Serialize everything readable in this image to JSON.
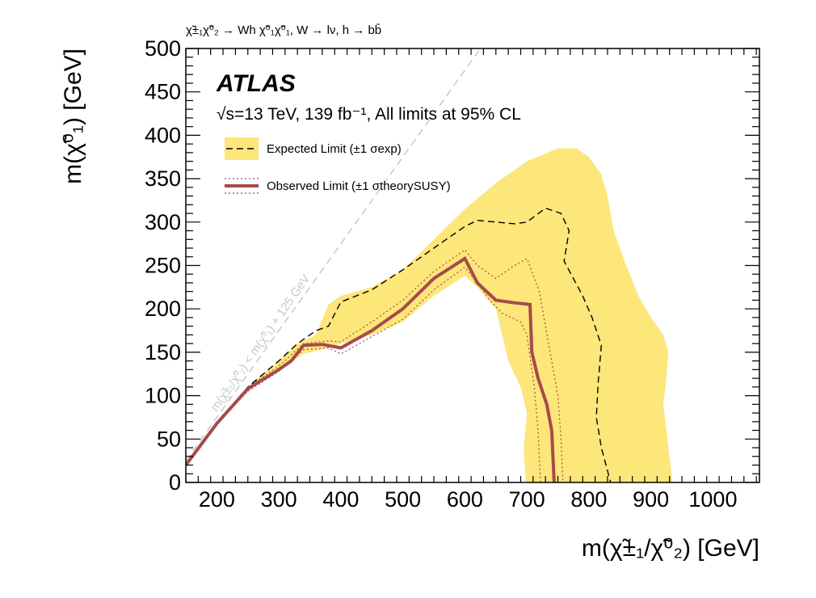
{
  "chart_data": {
    "type": "line",
    "process_label": "χ̃±₁χ̃⁰₂ → Wh χ̃⁰₁χ̃⁰₁, W → lν, h → bb̄",
    "experiment": "ATLAS",
    "energy_label": "√s=13 TeV, 139 fb⁻¹, All limits at 95% CL",
    "xlabel": "m(χ̃±₁/χ̃⁰₂) [GeV]",
    "ylabel": "m(χ̃⁰₁) [GeV]",
    "xlim": [
      150,
      1075
    ],
    "ylim": [
      0,
      500
    ],
    "x_ticks": [
      200,
      300,
      400,
      500,
      600,
      700,
      800,
      900,
      1000
    ],
    "y_ticks": [
      0,
      50,
      100,
      150,
      200,
      250,
      300,
      350,
      400,
      450,
      500
    ],
    "grid": false,
    "legend_position": "top-left",
    "legend": [
      {
        "label": "Expected Limit (±1 σexp)"
      },
      {
        "label": "Observed Limit (±1 σtheorySUSY)"
      }
    ],
    "diagonal_label": "m(χ̃±₁/χ̃⁰₂) < m(χ̃⁰₁) + 125 GeV",
    "diagonal_offset": 125,
    "colors": {
      "band": "#fde67a",
      "observed": "#a54b4b",
      "diagonal": "#c8c8c8"
    },
    "band_upper": [
      [
        150,
        20
      ],
      [
        200,
        68
      ],
      [
        250,
        110
      ],
      [
        300,
        140
      ],
      [
        330,
        160
      ],
      [
        360,
        170
      ],
      [
        380,
        205
      ],
      [
        400,
        215
      ],
      [
        450,
        225
      ],
      [
        500,
        245
      ],
      [
        550,
        280
      ],
      [
        600,
        315
      ],
      [
        650,
        345
      ],
      [
        700,
        370
      ],
      [
        750,
        385
      ],
      [
        780,
        385
      ],
      [
        800,
        375
      ],
      [
        820,
        355
      ],
      [
        830,
        330
      ],
      [
        840,
        290
      ],
      [
        860,
        250
      ],
      [
        880,
        215
      ],
      [
        900,
        190
      ],
      [
        920,
        170
      ],
      [
        928,
        150
      ],
      [
        925,
        120
      ],
      [
        920,
        90
      ],
      [
        925,
        60
      ],
      [
        930,
        30
      ],
      [
        935,
        0
      ]
    ],
    "band_lower": [
      [
        150,
        20
      ],
      [
        200,
        68
      ],
      [
        250,
        108
      ],
      [
        300,
        130
      ],
      [
        340,
        148
      ],
      [
        380,
        155
      ],
      [
        400,
        160
      ],
      [
        450,
        170
      ],
      [
        500,
        185
      ],
      [
        550,
        215
      ],
      [
        600,
        238
      ],
      [
        620,
        225
      ],
      [
        650,
        200
      ],
      [
        660,
        170
      ],
      [
        670,
        140
      ],
      [
        690,
        110
      ],
      [
        700,
        80
      ],
      [
        695,
        40
      ],
      [
        698,
        0
      ]
    ],
    "expected": [
      [
        150,
        20
      ],
      [
        200,
        68
      ],
      [
        250,
        110
      ],
      [
        300,
        140
      ],
      [
        330,
        160
      ],
      [
        360,
        175
      ],
      [
        380,
        180
      ],
      [
        400,
        208
      ],
      [
        450,
        222
      ],
      [
        500,
        245
      ],
      [
        550,
        270
      ],
      [
        600,
        295
      ],
      [
        620,
        302
      ],
      [
        650,
        300
      ],
      [
        680,
        298
      ],
      [
        700,
        300
      ],
      [
        730,
        316
      ],
      [
        755,
        310
      ],
      [
        768,
        290
      ],
      [
        760,
        255
      ],
      [
        790,
        215
      ],
      [
        805,
        190
      ],
      [
        820,
        158
      ],
      [
        815,
        115
      ],
      [
        812,
        75
      ],
      [
        820,
        40
      ],
      [
        835,
        0
      ]
    ],
    "observed": [
      [
        150,
        20
      ],
      [
        200,
        68
      ],
      [
        250,
        108
      ],
      [
        300,
        130
      ],
      [
        320,
        140
      ],
      [
        340,
        158
      ],
      [
        370,
        159
      ],
      [
        400,
        155
      ],
      [
        450,
        175
      ],
      [
        500,
        200
      ],
      [
        550,
        235
      ],
      [
        600,
        258
      ],
      [
        620,
        230
      ],
      [
        650,
        210
      ],
      [
        680,
        207
      ],
      [
        705,
        205
      ],
      [
        708,
        150
      ],
      [
        718,
        120
      ],
      [
        732,
        90
      ],
      [
        740,
        60
      ],
      [
        742,
        30
      ],
      [
        744,
        0
      ]
    ],
    "observed_up": [
      [
        150,
        20
      ],
      [
        200,
        68
      ],
      [
        250,
        110
      ],
      [
        300,
        134
      ],
      [
        340,
        160
      ],
      [
        380,
        163
      ],
      [
        400,
        162
      ],
      [
        450,
        185
      ],
      [
        500,
        210
      ],
      [
        550,
        243
      ],
      [
        600,
        268
      ],
      [
        620,
        250
      ],
      [
        650,
        235
      ],
      [
        680,
        250
      ],
      [
        700,
        258
      ],
      [
        720,
        220
      ],
      [
        735,
        160
      ],
      [
        750,
        100
      ],
      [
        755,
        50
      ],
      [
        758,
        0
      ]
    ],
    "observed_down": [
      [
        150,
        20
      ],
      [
        200,
        68
      ],
      [
        250,
        105
      ],
      [
        300,
        128
      ],
      [
        340,
        153
      ],
      [
        380,
        155
      ],
      [
        400,
        148
      ],
      [
        450,
        168
      ],
      [
        500,
        188
      ],
      [
        550,
        222
      ],
      [
        600,
        248
      ],
      [
        620,
        230
      ],
      [
        640,
        210
      ],
      [
        660,
        195
      ],
      [
        690,
        185
      ],
      [
        700,
        170
      ],
      [
        712,
        110
      ],
      [
        718,
        60
      ],
      [
        722,
        0
      ]
    ]
  }
}
